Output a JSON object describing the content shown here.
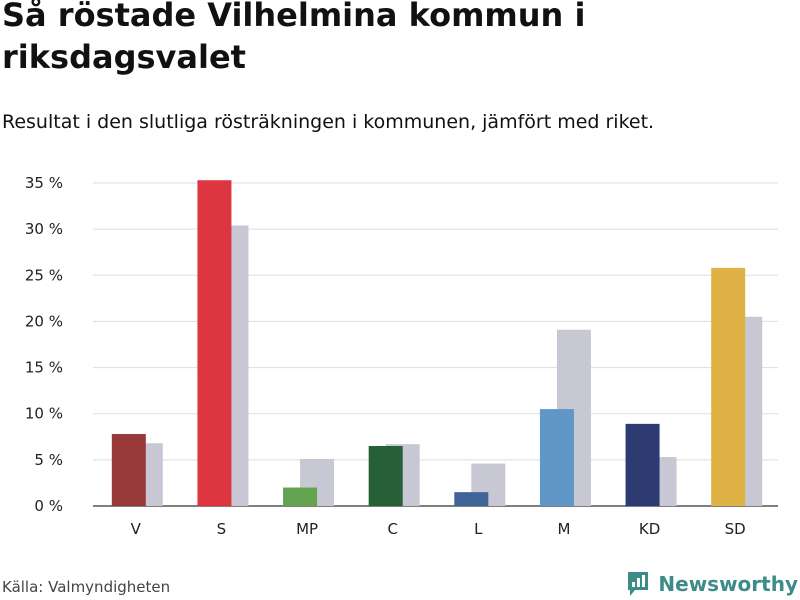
{
  "chart_data": {
    "type": "bar",
    "title": "Så röstade Vilhelmina kommun i riksdagsvalet",
    "subtitle": "Resultat i den slutliga rösträkningen i kommunen, jämfört med riket.",
    "categories": [
      "V",
      "S",
      "MP",
      "C",
      "L",
      "M",
      "KD",
      "SD"
    ],
    "series": [
      {
        "name": "Vilhelmina kommun",
        "values": [
          7.8,
          35.3,
          2.0,
          6.5,
          1.5,
          10.5,
          8.9,
          25.8
        ],
        "colors": [
          "#993838",
          "#dd3640",
          "#64a350",
          "#275f36",
          "#3e6498",
          "#6096c8",
          "#2e3a72",
          "#deb244"
        ]
      },
      {
        "name": "Riket",
        "values": [
          6.8,
          30.4,
          5.1,
          6.7,
          4.6,
          19.1,
          5.3,
          20.5
        ],
        "color": "#c8c8d4"
      }
    ],
    "ylim": [
      0,
      35
    ],
    "yticks": [
      0,
      5,
      10,
      15,
      20,
      25,
      30,
      35
    ],
    "tick_suffix": " %",
    "grid": true,
    "xlabel": "",
    "ylabel": ""
  },
  "footer": {
    "source": "Källa: Valmyndigheten",
    "brand": "Newsworthy",
    "brand_color": "#3e8c87"
  }
}
